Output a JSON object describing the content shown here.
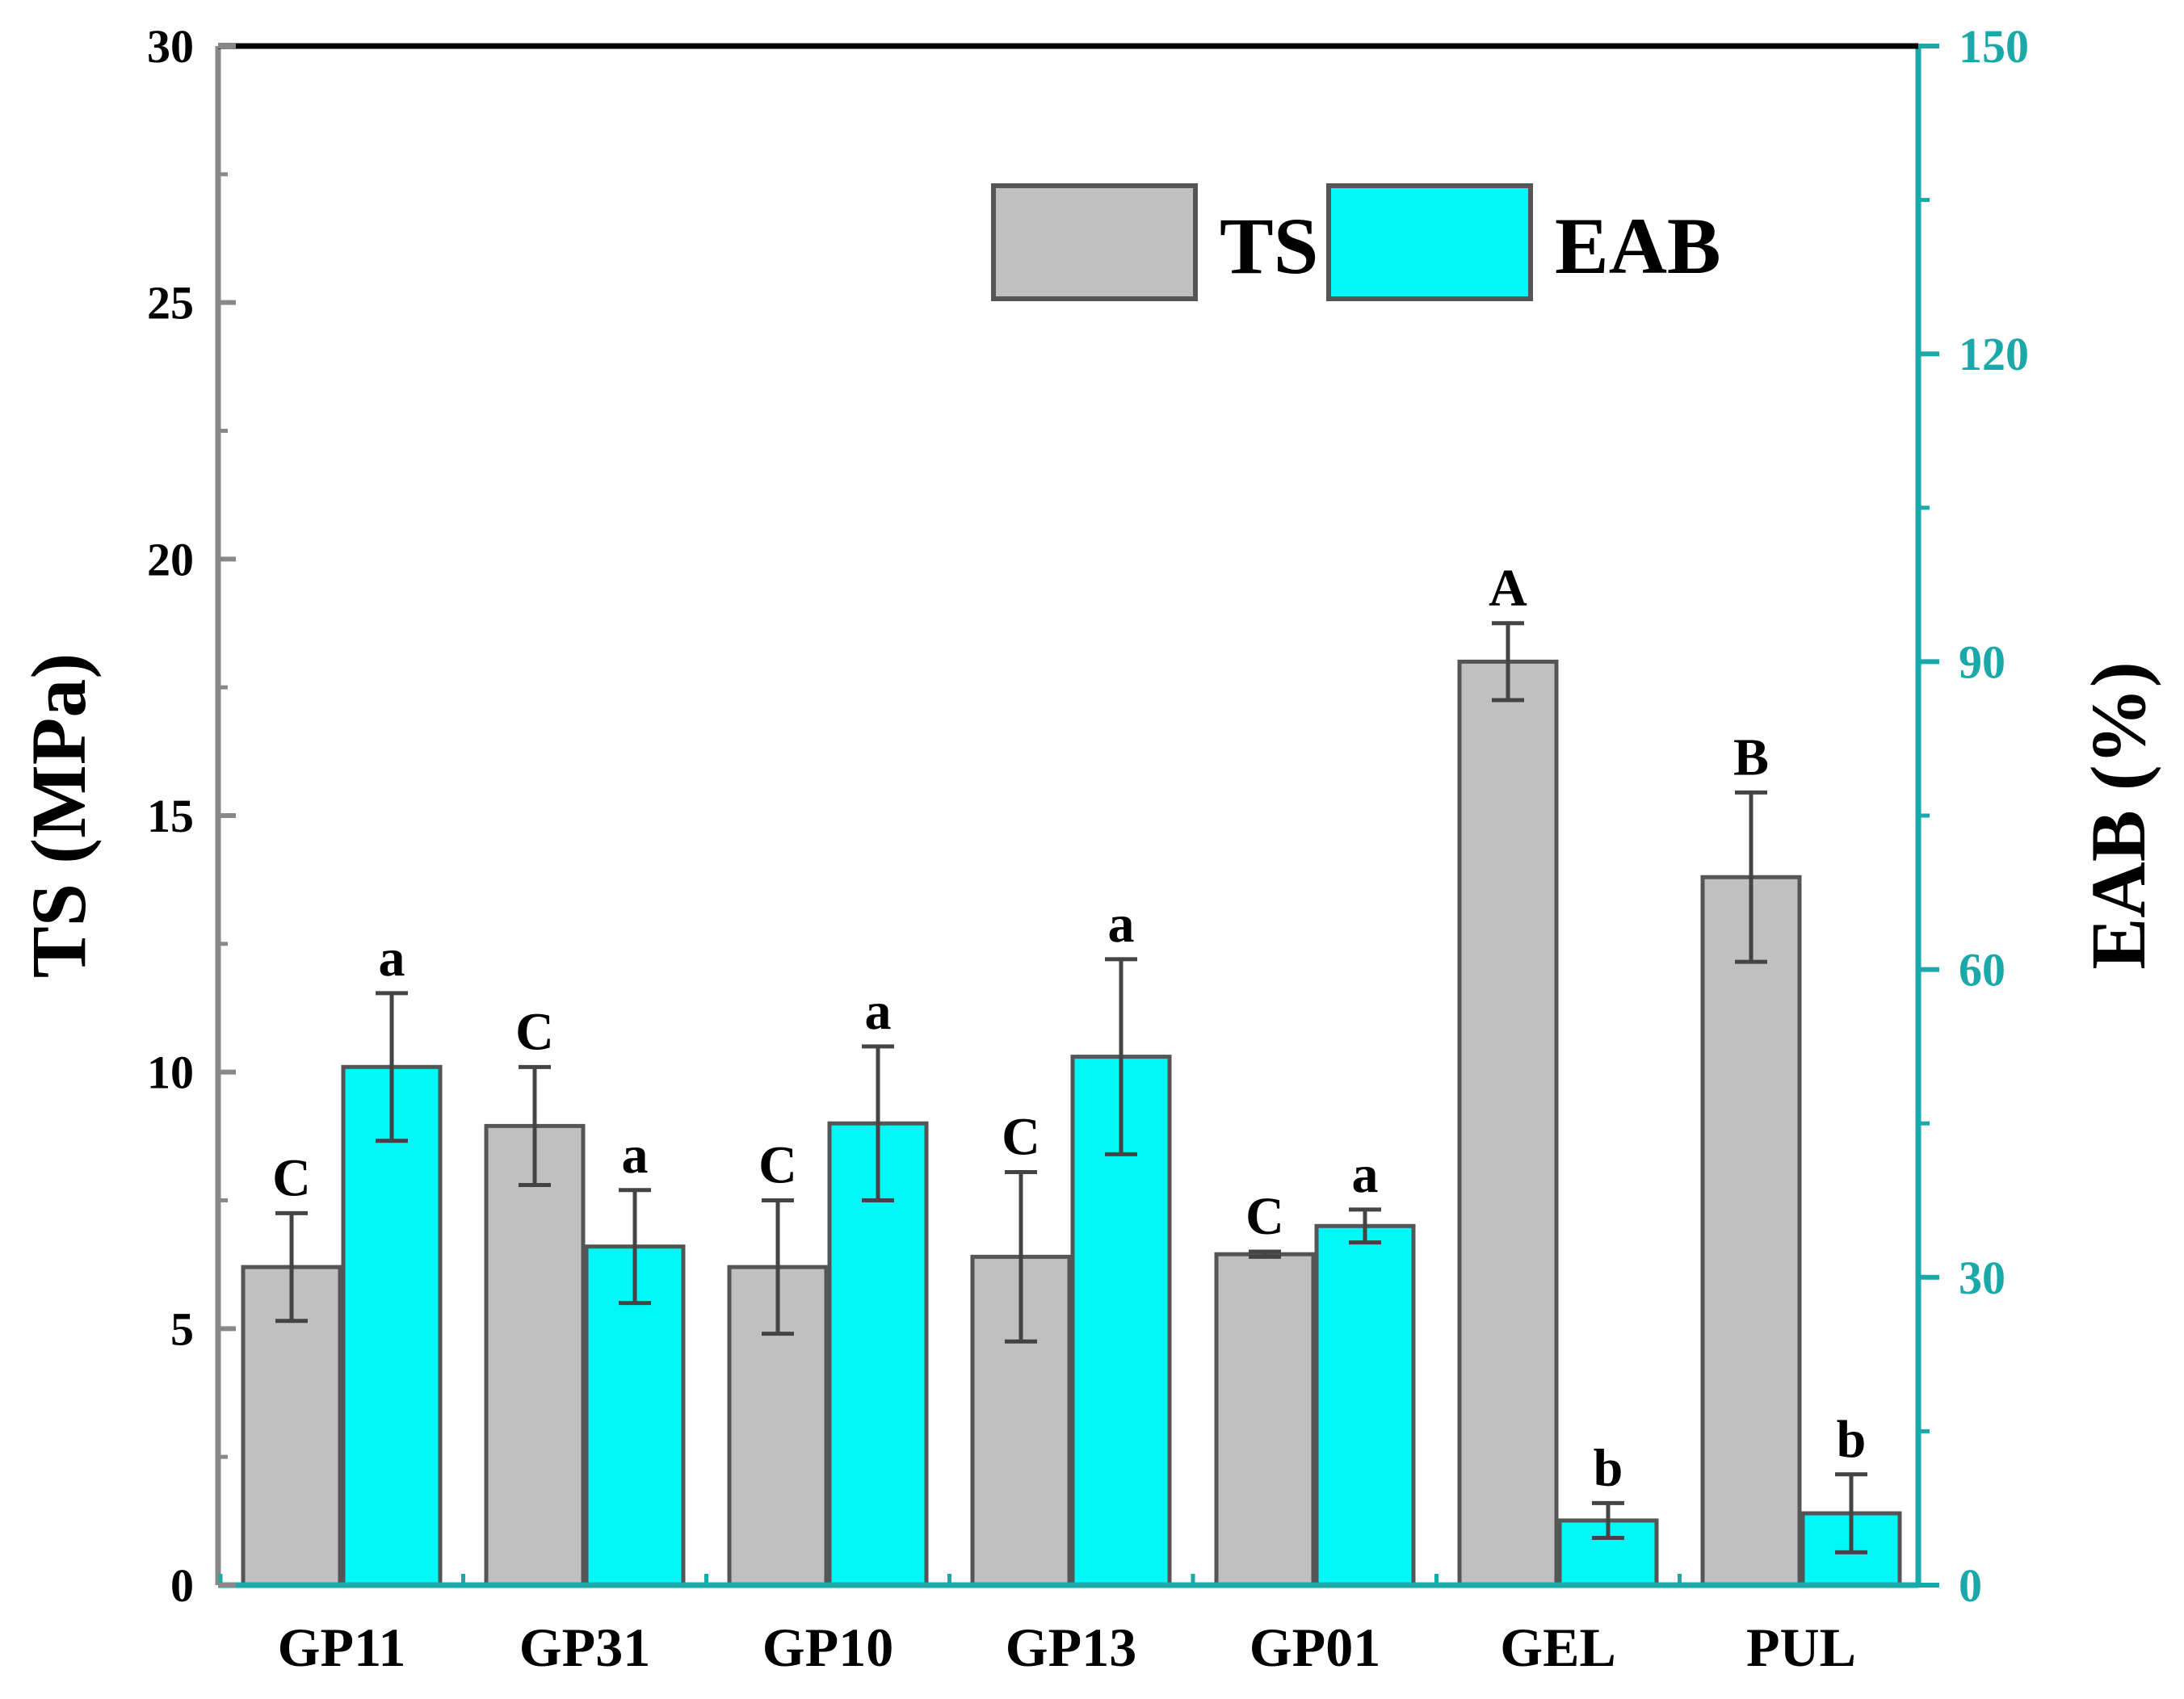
{
  "chart_data": {
    "type": "bar",
    "categories": [
      "GP11",
      "GP31",
      "GP10",
      "GP13",
      "GP01",
      "GEL",
      "PUL"
    ],
    "series": [
      {
        "name": "TS",
        "axis": "left",
        "color": "#c0c0c0",
        "values": [
          6.2,
          8.95,
          6.2,
          6.4,
          6.45,
          18.0,
          13.8
        ],
        "errors": [
          1.05,
          1.15,
          1.3,
          1.65,
          0.05,
          0.75,
          1.65
        ],
        "letters": [
          "C",
          "C",
          "C",
          "C",
          "C",
          "A",
          "B"
        ]
      },
      {
        "name": "EAB",
        "axis": "right",
        "color": "#00f8f8",
        "values": [
          50.5,
          33.0,
          45.0,
          51.5,
          35.0,
          6.3,
          7.0
        ],
        "errors": [
          7.2,
          5.5,
          7.5,
          9.5,
          1.6,
          1.7,
          3.8
        ],
        "letters": [
          "a",
          "a",
          "a",
          "a",
          "a",
          "b",
          "b"
        ]
      }
    ],
    "y_left": {
      "label": "TS (MPa)",
      "range": [
        0,
        30
      ],
      "ticks": [
        "0",
        "5",
        "10",
        "15",
        "20",
        "25",
        "30"
      ]
    },
    "y_right": {
      "label": "EAB (%)",
      "range": [
        0,
        150
      ],
      "ticks": [
        "0",
        "30",
        "60",
        "90",
        "120",
        "150"
      ]
    },
    "legend": {
      "position": "top-right",
      "entries": [
        "TS",
        "EAB"
      ]
    },
    "colors": {
      "ts_fill": "#c0c0c0",
      "eab_fill": "#00f8f8",
      "bar_edge": "#555555",
      "right_axis": "#1aa8a8",
      "left_axis": "#888888"
    }
  }
}
